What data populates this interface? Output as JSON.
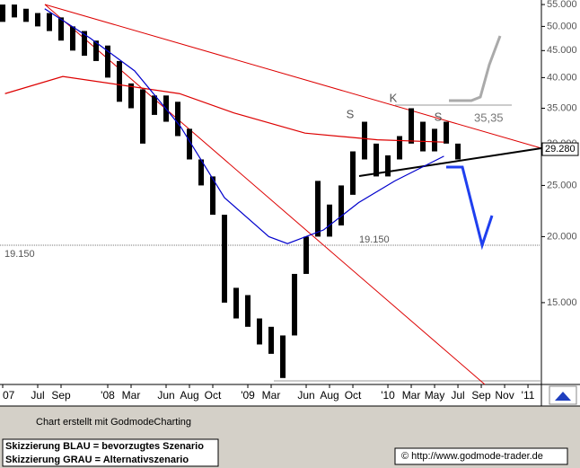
{
  "chart_data": {
    "type": "range",
    "log_scale": true,
    "grid": false,
    "color": "#000000",
    "x": [
      3,
      4,
      5,
      6,
      7,
      8,
      9,
      10,
      11,
      12,
      13,
      14,
      15,
      16,
      17,
      18,
      19,
      20,
      21,
      22,
      23,
      24,
      25,
      26,
      27,
      28,
      29,
      30,
      31,
      32,
      33,
      34,
      35,
      36,
      37,
      38,
      39,
      40,
      41,
      42
    ],
    "low": [
      51,
      52,
      51,
      50,
      49,
      47,
      45,
      44,
      43,
      40,
      36,
      35,
      30,
      34,
      33,
      31,
      28,
      25,
      22,
      15,
      14,
      13.5,
      12.5,
      12,
      10.8,
      13,
      17,
      20,
      20,
      21,
      24,
      28,
      26,
      26,
      28,
      30,
      29,
      29,
      30,
      28
    ],
    "high": [
      55,
      55,
      54,
      53,
      53,
      52,
      50,
      49,
      47,
      46,
      43,
      39,
      38,
      37,
      37,
      36,
      32,
      28,
      26,
      22,
      16,
      15.5,
      14,
      13.5,
      13,
      17,
      20,
      25.5,
      23,
      25,
      29,
      33,
      30,
      28.5,
      31,
      35,
      33,
      32,
      33,
      30
    ],
    "moving_averages": [
      {
        "color": "#dd0000",
        "x": [
          3.2,
          8.15,
          18.15,
          22.8,
          28.9,
          35.1,
          40.8
        ],
        "values": [
          37.3,
          40.2,
          37.3,
          34.3,
          31.4,
          30.5,
          30.2
        ]
      },
      {
        "color": "#0000cc",
        "x": [
          6.6,
          10.5,
          14.3,
          18.2,
          22,
          25.8,
          27.4,
          30.5,
          33.5,
          36.6,
          40.8
        ],
        "values": [
          54,
          47.5,
          41.2,
          32.4,
          23.7,
          20,
          19.4,
          20.6,
          23.2,
          25.5,
          28.4
        ]
      }
    ],
    "xlim": [
      2.77,
      49.15
    ],
    "ylim": [
      10.5,
      56.1
    ],
    "xticks": [
      {
        "value": 3,
        "label": "07"
      },
      {
        "value": 6,
        "label": "Jul"
      },
      {
        "value": 8,
        "label": "Sep"
      },
      {
        "value": 12,
        "label": "'08"
      },
      {
        "value": 14,
        "label": "Mar"
      },
      {
        "value": 17,
        "label": "Jun"
      },
      {
        "value": 19,
        "label": "Aug"
      },
      {
        "value": 21,
        "label": "Oct"
      },
      {
        "value": 24,
        "label": "'09"
      },
      {
        "value": 26,
        "label": "Mar"
      },
      {
        "value": 29,
        "label": "Jun"
      },
      {
        "value": 31,
        "label": "Aug"
      },
      {
        "value": 33,
        "label": "Oct"
      },
      {
        "value": 36,
        "label": "'10"
      },
      {
        "value": 38,
        "label": "Mar"
      },
      {
        "value": 40,
        "label": "May"
      },
      {
        "value": 42,
        "label": "Jul"
      },
      {
        "value": 44,
        "label": "Sep"
      },
      {
        "value": 46,
        "label": "Nov"
      },
      {
        "value": 48,
        "label": "'11"
      }
    ],
    "yticks": [
      {
        "value": 55,
        "label": "55.000"
      },
      {
        "value": 50,
        "label": "50.000"
      },
      {
        "value": 45,
        "label": "45.000"
      },
      {
        "value": 40,
        "label": "40.000"
      },
      {
        "value": 35,
        "label": "35.000"
      },
      {
        "value": 30,
        "label": "30.000"
      },
      {
        "value": 25,
        "label": "25.000"
      },
      {
        "value": 20,
        "label": "20.000"
      },
      {
        "value": 15,
        "label": "15.000"
      }
    ],
    "last_value": 29.28,
    "last_value_label": "29.280",
    "annotations": [
      "S",
      "K",
      "S",
      "35,35",
      "19.150",
      "19.150"
    ],
    "footer": [
      "Chart erstellt mit GodmodeCharting",
      "Skizzierung BLAU = bevorzugtes Szenario",
      "Skizzierung GRAU = Alternativszenario",
      "© http://www.godmode-trader.de"
    ]
  }
}
